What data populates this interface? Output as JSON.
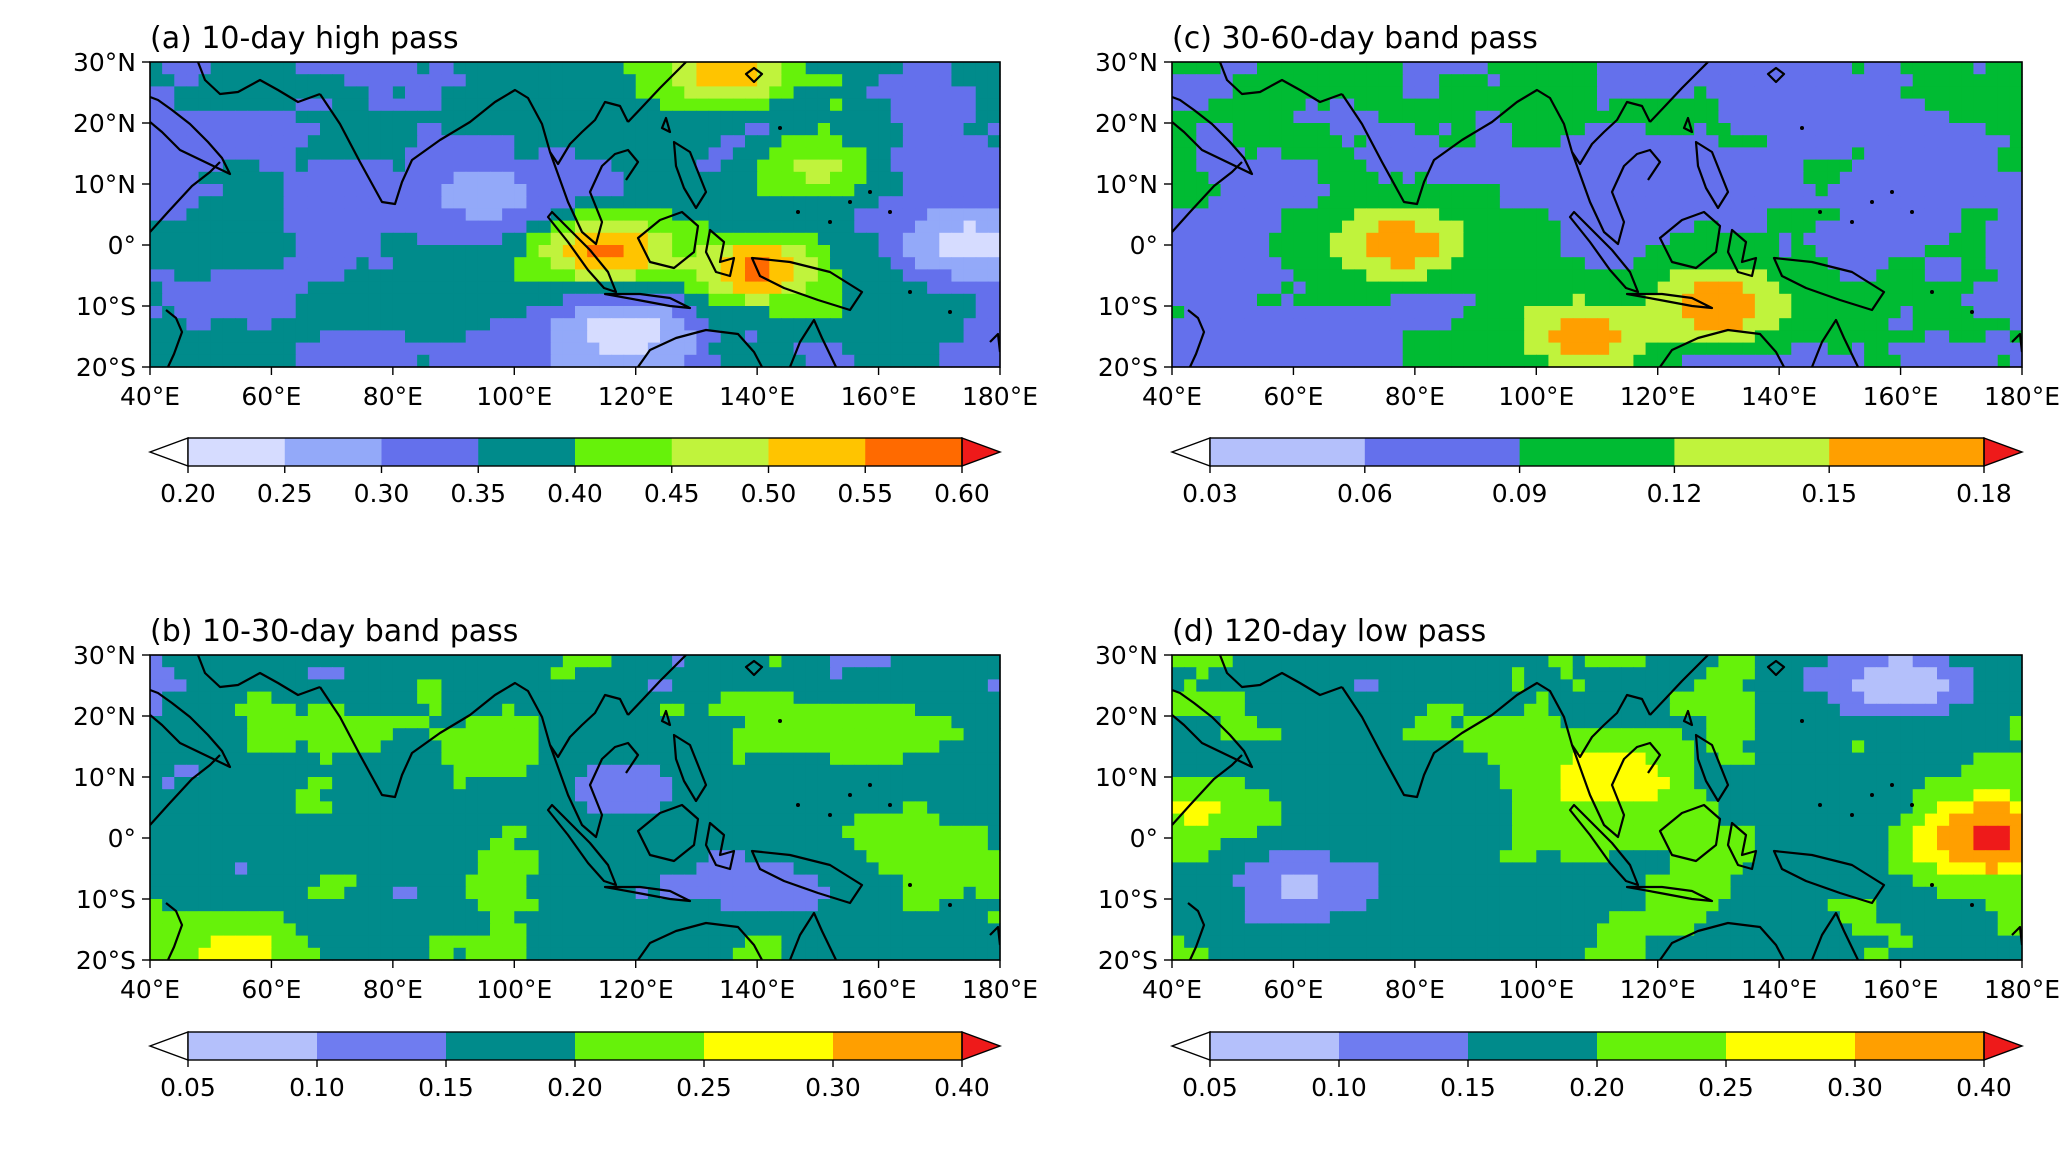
{
  "lon_ticks": [
    "40°E",
    "60°E",
    "80°E",
    "100°E",
    "120°E",
    "140°E",
    "160°E",
    "180°E"
  ],
  "lat_ticks": [
    "30°N",
    "20°N",
    "10°N",
    "0°",
    "10°S",
    "20°S"
  ],
  "chart_data": [
    {
      "id": "a",
      "type": "heatmap",
      "title": "(a) 10-day high pass",
      "xlim": [
        40,
        180
      ],
      "ylim": [
        -20,
        30
      ],
      "levels": [
        0.2,
        0.25,
        0.3,
        0.35,
        0.4,
        0.45,
        0.5,
        0.55,
        0.6
      ],
      "level_labels": [
        "0.20",
        "0.25",
        "0.30",
        "0.35",
        "0.40",
        "0.45",
        "0.50",
        "0.55",
        "0.60"
      ],
      "colors": [
        "#ffffff",
        "#d6dcff",
        "#93a9f9",
        "#6470ec",
        "#008b8b",
        "#66f20a",
        "#c0f33c",
        "#ffc400",
        "#ff6a00",
        "#ee1a1a"
      ],
      "extend": "both",
      "features": [
        {
          "lon": 115,
          "lat": -1,
          "value": 0.57
        },
        {
          "lon": 140,
          "lat": -4,
          "value": 0.57
        },
        {
          "lon": 135,
          "lat": 28,
          "value": 0.53
        },
        {
          "lon": 150,
          "lat": 12,
          "value": 0.46
        },
        {
          "lon": 95,
          "lat": 8,
          "value": 0.28
        },
        {
          "lon": 118,
          "lat": -14,
          "value": 0.22
        },
        {
          "lon": 175,
          "lat": 0,
          "value": 0.22
        }
      ]
    },
    {
      "id": "b",
      "type": "heatmap",
      "title": "(b) 10-30-day band pass",
      "xlim": [
        40,
        180
      ],
      "ylim": [
        -20,
        30
      ],
      "levels": [
        0.05,
        0.1,
        0.15,
        0.2,
        0.25,
        0.3,
        0.4
      ],
      "level_labels": [
        "0.05",
        "0.10",
        "0.15",
        "0.20",
        "0.25",
        "0.30",
        "0.40"
      ],
      "colors": [
        "#ffffff",
        "#b4c0fb",
        "#6f7cf0",
        "#008b8b",
        "#66f20a",
        "#ffff00",
        "#ff9f00",
        "#ee1a1a"
      ],
      "extend": "both",
      "features": [
        {
          "lon": 55,
          "lat": -18,
          "value": 0.27
        },
        {
          "lon": 160,
          "lat": 18,
          "value": 0.22
        },
        {
          "lon": 120,
          "lat": 8,
          "value": 0.13
        },
        {
          "lon": 140,
          "lat": -8,
          "value": 0.12
        },
        {
          "lon": 95,
          "lat": 15,
          "value": 0.21
        }
      ]
    },
    {
      "id": "c",
      "type": "heatmap",
      "title": "(c) 30-60-day band pass",
      "xlim": [
        40,
        180
      ],
      "ylim": [
        -20,
        30
      ],
      "levels": [
        0.03,
        0.06,
        0.09,
        0.12,
        0.15,
        0.18
      ],
      "level_labels": [
        "0.03",
        "0.06",
        "0.09",
        "0.12",
        "0.15",
        "0.18"
      ],
      "colors": [
        "#ffffff",
        "#b4c0fb",
        "#6470ec",
        "#00bb33",
        "#c0f33c",
        "#ff9f00",
        "#ee1a1a"
      ],
      "extend": "both",
      "features": [
        {
          "lon": 78,
          "lat": 0,
          "value": 0.17
        },
        {
          "lon": 130,
          "lat": -10,
          "value": 0.18
        },
        {
          "lon": 108,
          "lat": -15,
          "value": 0.17
        },
        {
          "lon": 120,
          "lat": 10,
          "value": 0.07
        },
        {
          "lon": 160,
          "lat": 5,
          "value": 0.08
        }
      ]
    },
    {
      "id": "d",
      "type": "heatmap",
      "title": "(d) 120-day low pass",
      "xlim": [
        40,
        180
      ],
      "ylim": [
        -20,
        30
      ],
      "levels": [
        0.05,
        0.1,
        0.15,
        0.2,
        0.25,
        0.3,
        0.4
      ],
      "level_labels": [
        "0.05",
        "0.10",
        "0.15",
        "0.20",
        "0.25",
        "0.30",
        "0.40"
      ],
      "colors": [
        "#ffffff",
        "#b4c0fb",
        "#6f7cf0",
        "#008b8b",
        "#66f20a",
        "#ffff00",
        "#ff9f00",
        "#ee1a1a"
      ],
      "extend": "both",
      "features": [
        {
          "lon": 175,
          "lat": 0,
          "value": 0.42
        },
        {
          "lon": 112,
          "lat": 10,
          "value": 0.3
        },
        {
          "lon": 45,
          "lat": 5,
          "value": 0.26
        },
        {
          "lon": 80,
          "lat": 5,
          "value": 0.17
        },
        {
          "lon": 60,
          "lat": -8,
          "value": 0.09
        },
        {
          "lon": 160,
          "lat": 25,
          "value": 0.05
        }
      ]
    }
  ]
}
